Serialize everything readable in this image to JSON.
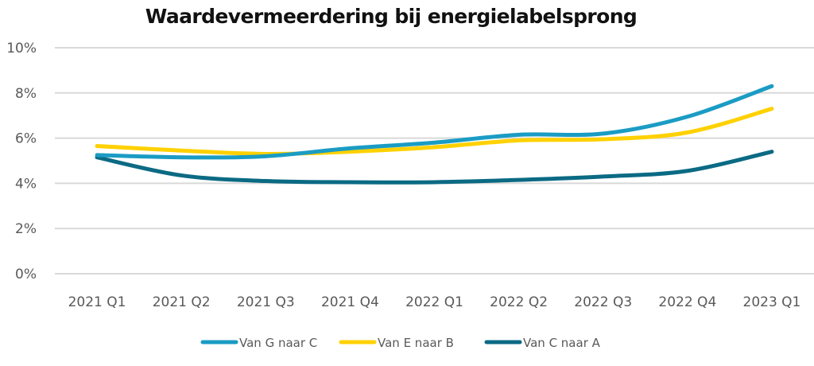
{
  "chart_data": {
    "type": "line",
    "title": "Waardevermeerdering bij energielabelsprong",
    "xlabel": "",
    "ylabel": "",
    "categories": [
      "2021 Q1",
      "2021 Q2",
      "2021 Q3",
      "2021 Q4",
      "2022 Q1",
      "2022 Q2",
      "2022 Q3",
      "2022 Q4",
      "2023 Q1"
    ],
    "ylim": [
      0,
      10
    ],
    "yticks": [
      0,
      2,
      4,
      6,
      8,
      10
    ],
    "ytick_labels": [
      "0%",
      "2%",
      "4%",
      "6%",
      "8%",
      "10%"
    ],
    "grid": true,
    "smooth": true,
    "legend_position": "bottom",
    "series": [
      {
        "name": "Van G naar C",
        "color": "#1A9CC4",
        "values": [
          5.25,
          5.15,
          5.2,
          5.55,
          5.8,
          6.15,
          6.2,
          6.95,
          8.3
        ]
      },
      {
        "name": "Van E naar B",
        "color": "#FFD100",
        "values": [
          5.65,
          5.45,
          5.3,
          5.4,
          5.6,
          5.9,
          5.95,
          6.25,
          7.3
        ]
      },
      {
        "name": "Van C naar A",
        "color": "#0B6A84",
        "values": [
          5.15,
          4.35,
          4.1,
          4.05,
          4.05,
          4.15,
          4.3,
          4.55,
          5.4
        ]
      }
    ]
  }
}
